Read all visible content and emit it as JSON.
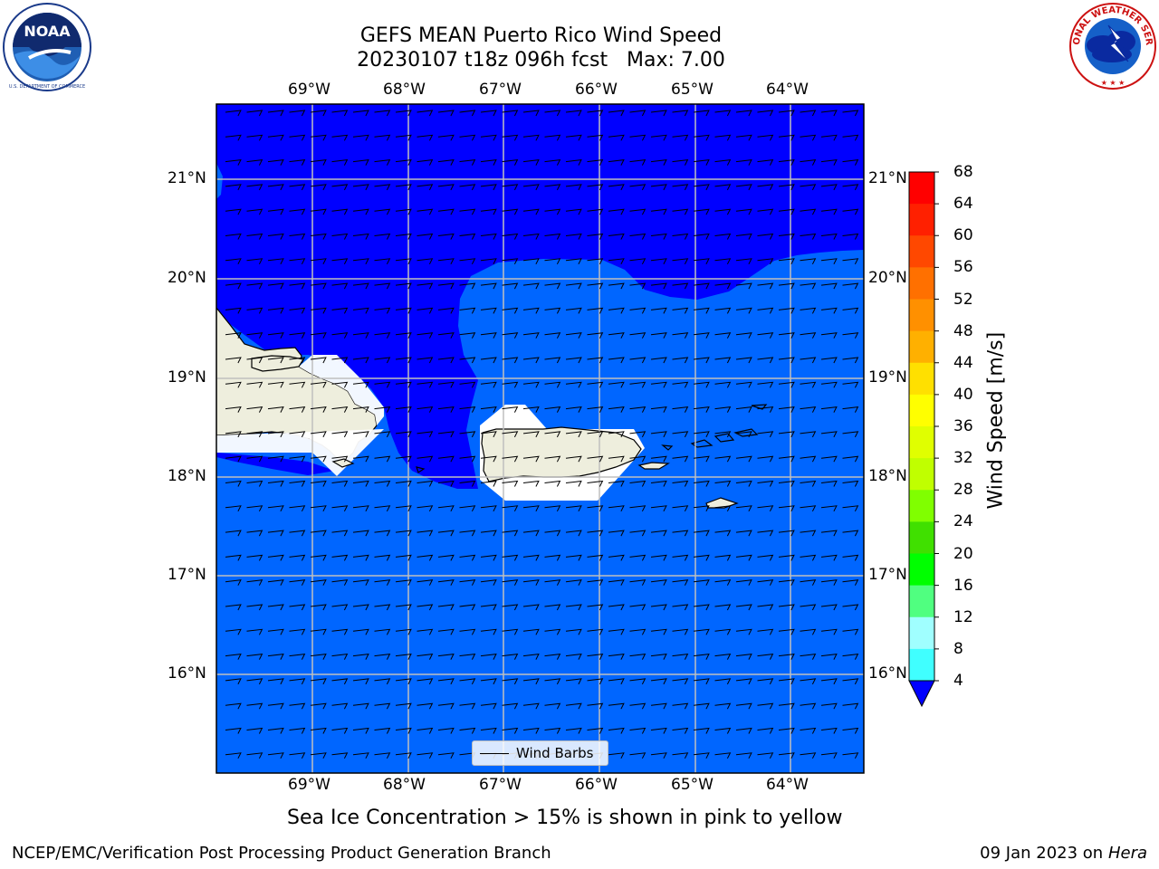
{
  "title": {
    "line1": "GEFS MEAN Puerto Rico Wind Speed",
    "line2": "20230107 t18z 096h fcst   Max: 7.00"
  },
  "logos": {
    "left": "noaa-logo",
    "left_text": "NOAA",
    "left_ring_text": "NATIONAL OCEANIC AND ATMOSPHERIC ADMINISTRATION",
    "left_bottom_text": "U.S. DEPARTMENT OF COMMERCE",
    "right": "nws-logo",
    "right_ring_text": "NATIONAL WEATHER SERVICE"
  },
  "map": {
    "lon_labels": [
      "69°W",
      "68°W",
      "67°W",
      "66°W",
      "65°W",
      "64°W"
    ],
    "lat_labels": [
      "21°N",
      "20°N",
      "19°N",
      "18°N",
      "17°N",
      "16°N"
    ],
    "lon_extent": [
      -70.0,
      -63.25
    ],
    "lat_extent": [
      15.0,
      21.75
    ],
    "colors": {
      "ocean_4_8": "#0066ff",
      "ocean_below_4": "#0000ff",
      "land": "#eeeedd",
      "gridline": "#bfbfbf"
    }
  },
  "legend": {
    "label": "Wind Barbs"
  },
  "colorbar": {
    "label": "Wind Speed [m/s]",
    "ticks": [
      "68",
      "64",
      "60",
      "56",
      "52",
      "48",
      "44",
      "40",
      "36",
      "32",
      "28",
      "24",
      "20",
      "16",
      "12",
      "8",
      "4"
    ],
    "colors": [
      "#ff0000",
      "#ff2000",
      "#ff4800",
      "#ff7000",
      "#ff9000",
      "#ffb000",
      "#ffe000",
      "#ffff00",
      "#e0ff00",
      "#c0ff00",
      "#80ff00",
      "#40e000",
      "#00ff00",
      "#50ff80",
      "#a0ffff",
      "#40ffff",
      "#00ffff",
      "#00e0ff",
      "#0066ff"
    ],
    "under_color": "#0000ff"
  },
  "caption": "Sea Ice Concentration > 15% is shown in pink to yellow",
  "footer": {
    "left": "NCEP/EMC/Verification Post Processing Product Generation Branch",
    "right_prefix": "09 Jan 2023 on ",
    "right_machine": "Hera"
  }
}
